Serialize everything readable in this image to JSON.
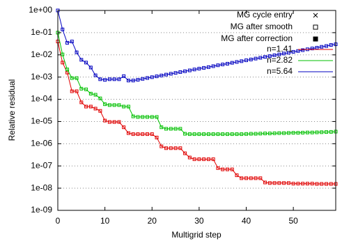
{
  "chart_data": {
    "type": "line",
    "xlabel": "Multigrid step",
    "ylabel": "Relative residual",
    "log_y": true,
    "grid": true,
    "xlim": [
      0,
      59
    ],
    "xticks": [
      0,
      10,
      20,
      30,
      40,
      50
    ],
    "ylim": [
      1e-09,
      1
    ],
    "yticks": [
      {
        "value": 1,
        "label": "1e+00"
      },
      {
        "value": 0.1,
        "label": "1e-01"
      },
      {
        "value": 0.01,
        "label": "1e-02"
      },
      {
        "value": 0.001,
        "label": "1e-03"
      },
      {
        "value": 0.0001,
        "label": "1e-04"
      },
      {
        "value": 1e-05,
        "label": "1e-05"
      },
      {
        "value": 1e-06,
        "label": "1e-06"
      },
      {
        "value": 1e-07,
        "label": "1e-07"
      },
      {
        "value": 1e-08,
        "label": "1e-08"
      },
      {
        "value": 1e-09,
        "label": "1e-09"
      }
    ],
    "marker_legend": [
      "MG cycle entry",
      "MG after smooth",
      "MG after correction"
    ],
    "x": [
      0,
      1,
      2,
      3,
      4,
      5,
      6,
      7,
      8,
      9,
      10,
      11,
      12,
      13,
      14,
      15,
      16,
      17,
      18,
      19,
      20,
      21,
      22,
      23,
      24,
      25,
      26,
      27,
      28,
      29,
      30,
      31,
      32,
      33,
      34,
      35,
      36,
      37,
      38,
      39,
      40,
      41,
      42,
      43,
      44,
      45,
      46,
      47,
      48,
      49,
      50,
      51,
      52,
      53,
      54,
      55,
      56,
      57,
      58,
      59
    ],
    "series": [
      {
        "name": "n=1.41",
        "color": "#e00000",
        "values": [
          0.04,
          0.0045,
          0.0016,
          0.00023,
          0.00023,
          7.3e-05,
          4.7e-05,
          4.7e-05,
          3.8e-05,
          3e-05,
          1.1e-05,
          9.5e-06,
          9.5e-06,
          9.5e-06,
          5.5e-06,
          3e-06,
          2.7e-06,
          2.7e-06,
          2.7e-06,
          2.7e-06,
          2.7e-06,
          1.9e-06,
          7.6e-07,
          6.3e-07,
          6.3e-07,
          6.3e-07,
          6.3e-07,
          3.7e-07,
          2.4e-07,
          2e-07,
          2e-07,
          2e-07,
          2e-07,
          2e-07,
          8e-08,
          7e-08,
          7e-08,
          7e-08,
          3.8e-08,
          2.8e-08,
          2.8e-08,
          2.8e-08,
          2.8e-08,
          2.8e-08,
          1.8e-08,
          1.7e-08,
          1.7e-08,
          1.7e-08,
          1.7e-08,
          1.7e-08,
          1.6e-08,
          1.6e-08,
          1.6e-08,
          1.6e-08,
          1.6e-08,
          1.55e-08,
          1.55e-08,
          1.55e-08,
          1.55e-08,
          1.55e-08
        ]
      },
      {
        "name": "n=2.82",
        "color": "#00c000",
        "values": [
          0.1,
          0.0105,
          0.0022,
          0.0009,
          0.0009,
          0.0003,
          0.00028,
          0.00018,
          0.00016,
          0.00011,
          6e-05,
          5.5e-05,
          5.5e-05,
          5.5e-05,
          4.7e-05,
          4.7e-05,
          1.7e-05,
          1.6e-05,
          1.6e-05,
          1.6e-05,
          1.6e-05,
          1.6e-05,
          5.5e-06,
          4.7e-06,
          4.7e-06,
          4.7e-06,
          4.7e-06,
          2.8e-06,
          2.7e-06,
          2.7e-06,
          2.7e-06,
          2.7e-06,
          2.7e-06,
          2.7e-06,
          2.7e-06,
          2.7e-06,
          2.7e-06,
          2.7e-06,
          2.7e-06,
          2.7e-06,
          2.75e-06,
          2.8e-06,
          2.8e-06,
          2.85e-06,
          2.9e-06,
          2.9e-06,
          2.95e-06,
          3e-06,
          3e-06,
          3.05e-06,
          3.1e-06,
          3.1e-06,
          3.15e-06,
          3.2e-06,
          3.2e-06,
          3.25e-06,
          3.3e-06,
          3.35e-06,
          3.4e-06,
          3.5e-06
        ]
      },
      {
        "name": "n=5.64",
        "color": "#0000c0",
        "values": [
          1,
          0.14,
          0.035,
          0.04,
          0.013,
          0.006,
          0.0045,
          0.0027,
          0.0012,
          0.0008,
          0.00075,
          0.0008,
          0.0008,
          0.0008,
          0.0011,
          0.0007,
          0.0007,
          0.00076,
          0.00083,
          0.00091,
          0.00099,
          0.00108,
          0.00118,
          0.00129,
          0.00141,
          0.00154,
          0.00168,
          0.00183,
          0.002,
          0.0022,
          0.0024,
          0.0026,
          0.0028,
          0.0031,
          0.0034,
          0.0037,
          0.004,
          0.0044,
          0.0048,
          0.0052,
          0.0057,
          0.0062,
          0.0068,
          0.0074,
          0.0081,
          0.0088,
          0.0096,
          0.0105,
          0.0115,
          0.0125,
          0.0137,
          0.0149,
          0.0163,
          0.0178,
          0.0194,
          0.021,
          0.023,
          0.025,
          0.028,
          0.03
        ]
      }
    ]
  }
}
